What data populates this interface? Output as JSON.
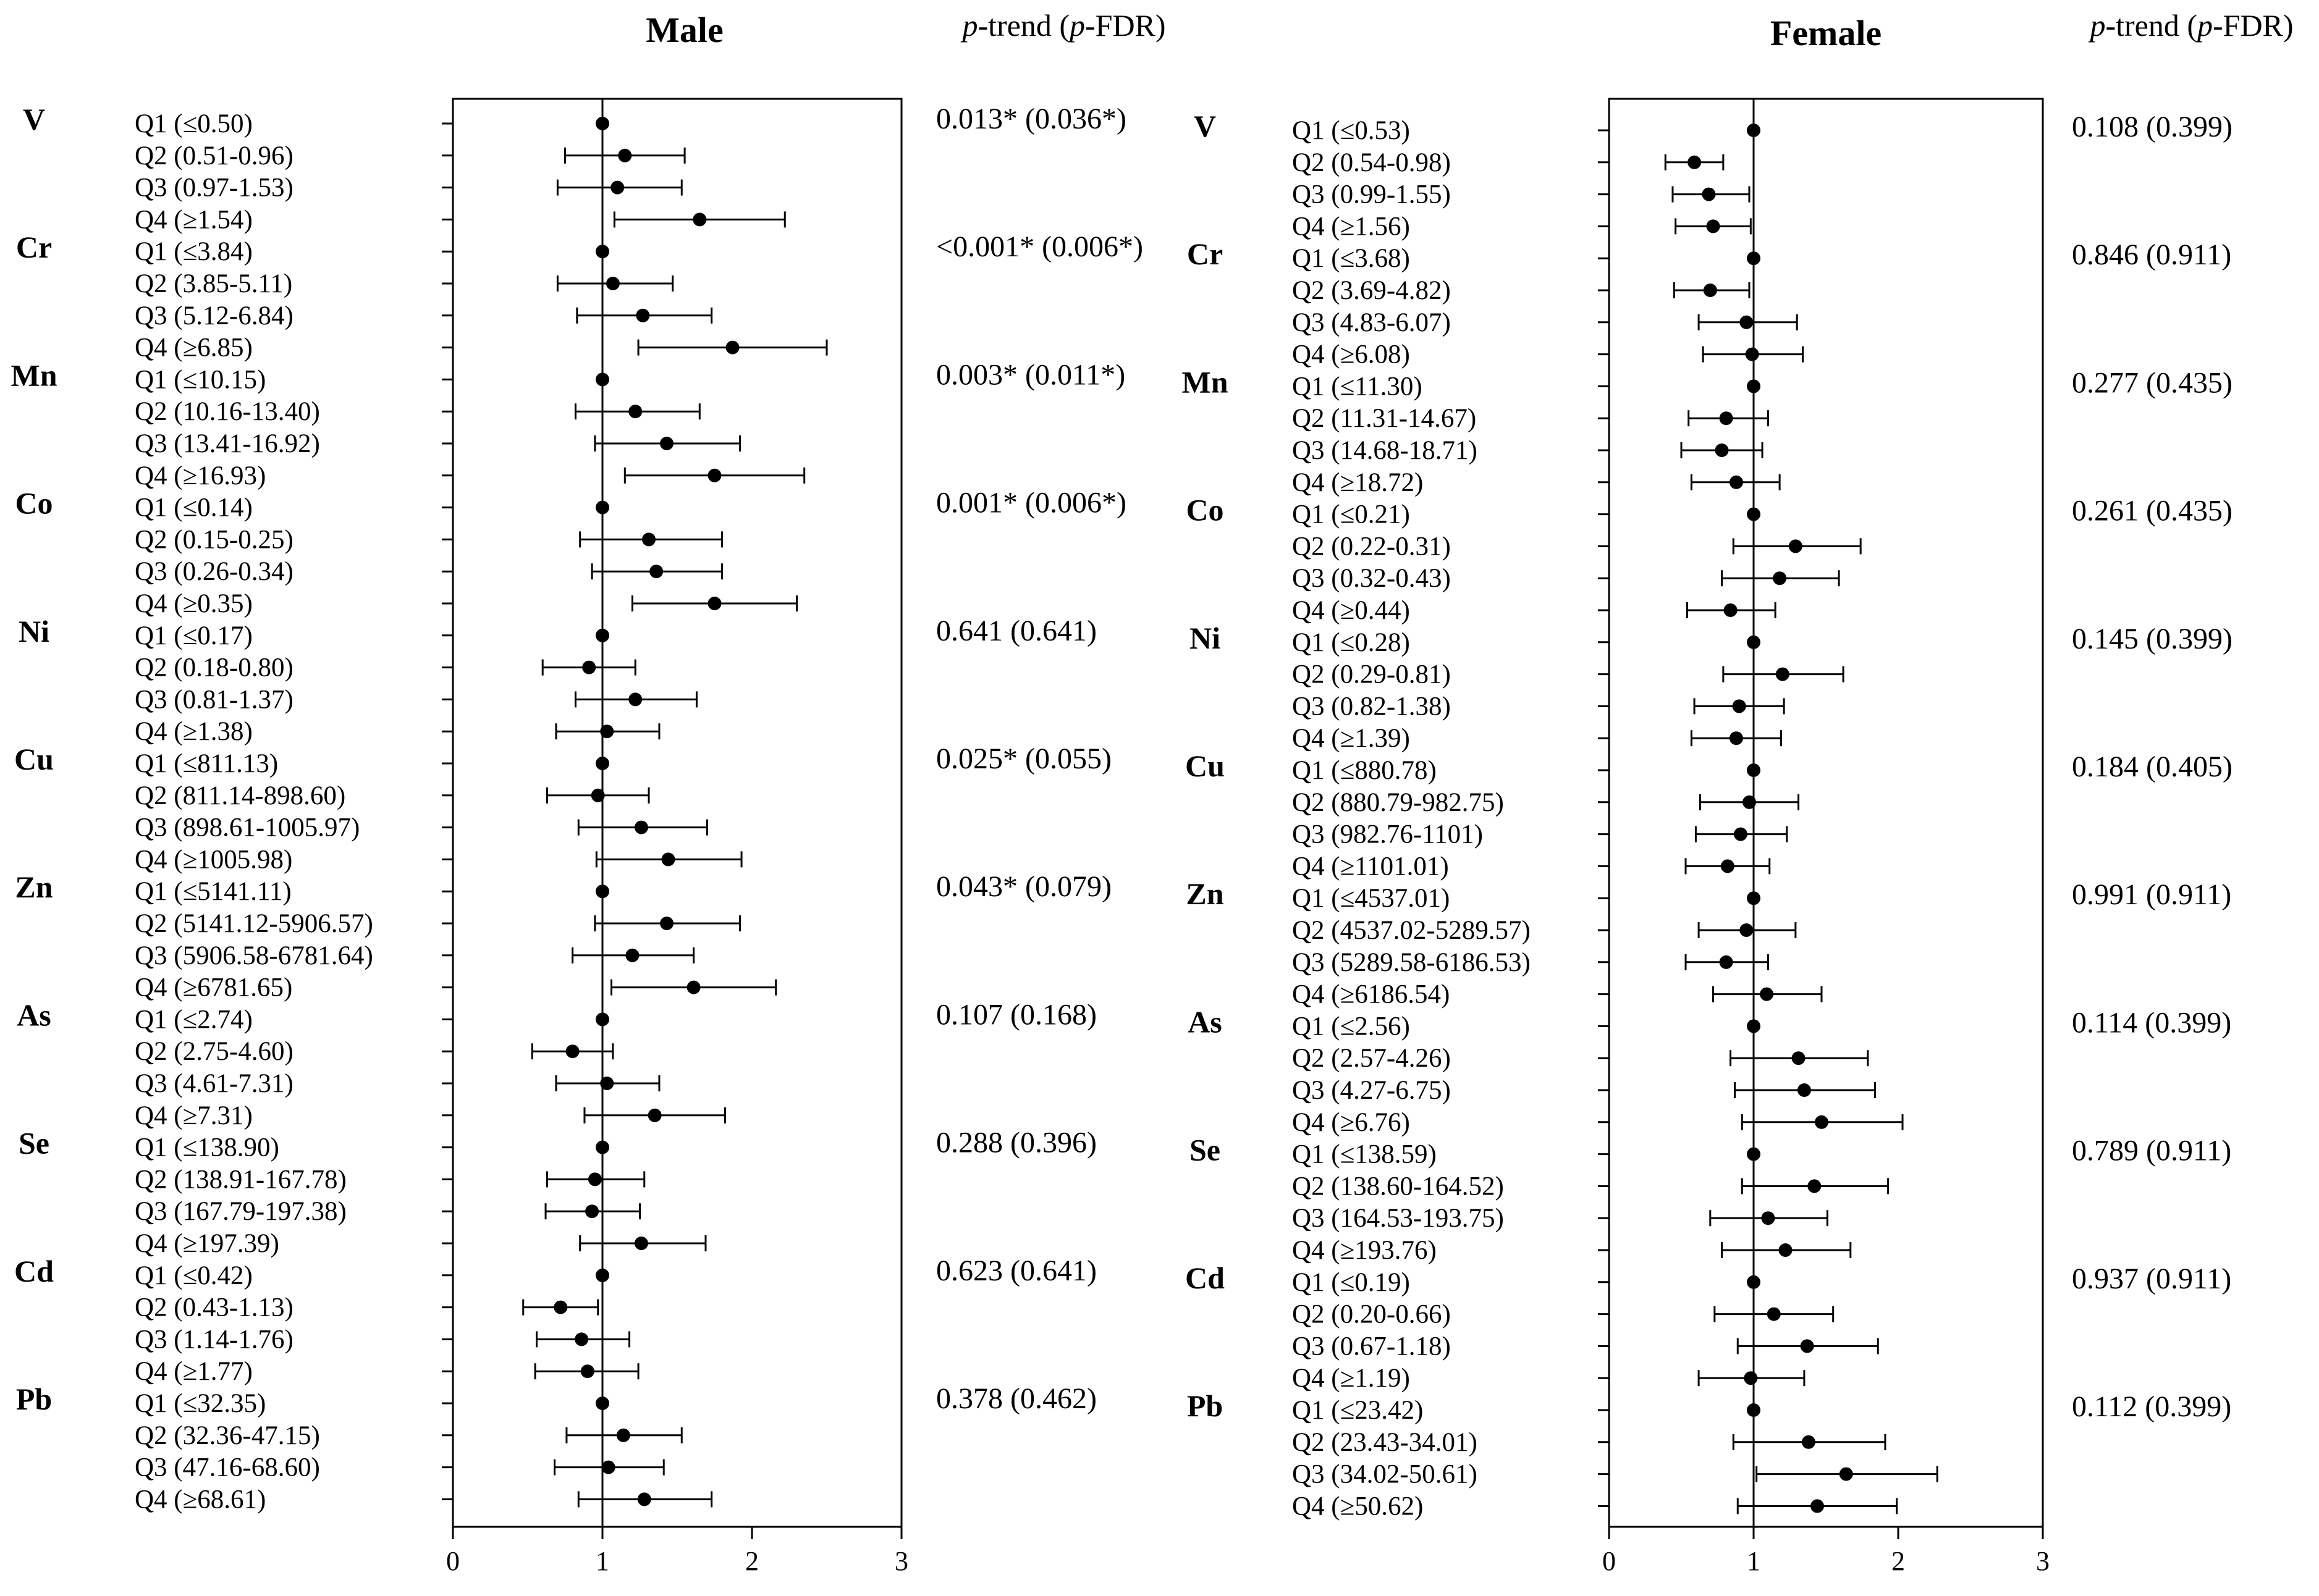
{
  "chart_data": [
    {
      "type": "forest",
      "title": "Male",
      "trend_header": {
        "p": "p",
        "mid": "-trend (",
        "p2": "p",
        "end": "-FDR)"
      },
      "xlim": [
        0,
        3
      ],
      "xticks": [
        "0",
        "1",
        "2",
        "3"
      ],
      "reference_line": 1,
      "groups": [
        {
          "metal": "V",
          "p_trend": "0.013* (0.036*)",
          "rows": [
            {
              "label": "Q1 (≤0.50)",
              "est": 1,
              "lo": 1,
              "hi": 1
            },
            {
              "label": "Q2 (0.51-0.96)",
              "est": 1.15,
              "lo": 0.75,
              "hi": 1.55
            },
            {
              "label": "Q3 (0.97-1.53)",
              "est": 1.1,
              "lo": 0.7,
              "hi": 1.53
            },
            {
              "label": "Q4 (≥1.54)",
              "est": 1.65,
              "lo": 1.08,
              "hi": 2.22
            }
          ]
        },
        {
          "metal": "Cr",
          "p_trend": "<0.001* (0.006*)",
          "rows": [
            {
              "label": "Q1 (≤3.84)",
              "est": 1,
              "lo": 1,
              "hi": 1
            },
            {
              "label": "Q2 (3.85-5.11)",
              "est": 1.07,
              "lo": 0.7,
              "hi": 1.47
            },
            {
              "label": "Q3 (5.12-6.84)",
              "est": 1.27,
              "lo": 0.83,
              "hi": 1.73
            },
            {
              "label": "Q4 (≥6.85)",
              "est": 1.87,
              "lo": 1.24,
              "hi": 2.5
            }
          ]
        },
        {
          "metal": "Mn",
          "p_trend": "0.003* (0.011*)",
          "rows": [
            {
              "label": "Q1 (≤10.15)",
              "est": 1,
              "lo": 1,
              "hi": 1
            },
            {
              "label": "Q2 (10.16-13.40)",
              "est": 1.22,
              "lo": 0.82,
              "hi": 1.65
            },
            {
              "label": "Q3 (13.41-16.92)",
              "est": 1.43,
              "lo": 0.95,
              "hi": 1.92
            },
            {
              "label": "Q4 (≥16.93)",
              "est": 1.75,
              "lo": 1.15,
              "hi": 2.35
            }
          ]
        },
        {
          "metal": "Co",
          "p_trend": "0.001* (0.006*)",
          "rows": [
            {
              "label": "Q1 (≤0.14)",
              "est": 1,
              "lo": 1,
              "hi": 1
            },
            {
              "label": "Q2 (0.15-0.25)",
              "est": 1.31,
              "lo": 0.85,
              "hi": 1.8
            },
            {
              "label": "Q3 (0.26-0.34)",
              "est": 1.36,
              "lo": 0.93,
              "hi": 1.8
            },
            {
              "label": "Q4 (≥0.35)",
              "est": 1.75,
              "lo": 1.2,
              "hi": 2.3
            }
          ]
        },
        {
          "metal": "Ni",
          "p_trend": "0.641 (0.641)",
          "rows": [
            {
              "label": "Q1 (≤0.17)",
              "est": 1,
              "lo": 1,
              "hi": 1
            },
            {
              "label": "Q2 (0.18-0.80)",
              "est": 0.91,
              "lo": 0.6,
              "hi": 1.22
            },
            {
              "label": "Q3 (0.81-1.37)",
              "est": 1.22,
              "lo": 0.82,
              "hi": 1.63
            },
            {
              "label": "Q4 (≥1.38)",
              "est": 1.03,
              "lo": 0.69,
              "hi": 1.38
            }
          ]
        },
        {
          "metal": "Cu",
          "p_trend": "0.025* (0.055)",
          "rows": [
            {
              "label": "Q1 (≤811.13)",
              "est": 1,
              "lo": 1,
              "hi": 1
            },
            {
              "label": "Q2 (811.14-898.60)",
              "est": 0.97,
              "lo": 0.63,
              "hi": 1.31
            },
            {
              "label": "Q3 (898.61-1005.97)",
              "est": 1.26,
              "lo": 0.84,
              "hi": 1.7
            },
            {
              "label": "Q4 (≥1005.98)",
              "est": 1.44,
              "lo": 0.96,
              "hi": 1.93
            }
          ]
        },
        {
          "metal": "Zn",
          "p_trend": "0.043* (0.079)",
          "rows": [
            {
              "label": "Q1 (≤5141.11)",
              "est": 1,
              "lo": 1,
              "hi": 1
            },
            {
              "label": "Q2 (5141.12-5906.57)",
              "est": 1.43,
              "lo": 0.95,
              "hi": 1.92
            },
            {
              "label": "Q3 (5906.58-6781.64)",
              "est": 1.2,
              "lo": 0.8,
              "hi": 1.61
            },
            {
              "label": "Q4 (≥6781.65)",
              "est": 1.61,
              "lo": 1.06,
              "hi": 2.16
            }
          ]
        },
        {
          "metal": "As",
          "p_trend": "0.107 (0.168)",
          "rows": [
            {
              "label": "Q1 (≤2.74)",
              "est": 1,
              "lo": 1,
              "hi": 1
            },
            {
              "label": "Q2 (2.75-4.60)",
              "est": 0.8,
              "lo": 0.53,
              "hi": 1.07
            },
            {
              "label": "Q3 (4.61-7.31)",
              "est": 1.03,
              "lo": 0.69,
              "hi": 1.38
            },
            {
              "label": "Q4 (≥7.31)",
              "est": 1.35,
              "lo": 0.88,
              "hi": 1.82
            }
          ]
        },
        {
          "metal": "Se",
          "p_trend": "0.288 (0.396)",
          "rows": [
            {
              "label": "Q1 (≤138.90)",
              "est": 1,
              "lo": 1,
              "hi": 1
            },
            {
              "label": "Q2 (138.91-167.78)",
              "est": 0.95,
              "lo": 0.63,
              "hi": 1.28
            },
            {
              "label": "Q3 (167.79-197.38)",
              "est": 0.93,
              "lo": 0.62,
              "hi": 1.25
            },
            {
              "label": "Q4 (≥197.39)",
              "est": 1.26,
              "lo": 0.85,
              "hi": 1.69
            }
          ]
        },
        {
          "metal": "Cd",
          "p_trend": "0.623 (0.641)",
          "rows": [
            {
              "label": "Q1 (≤0.42)",
              "est": 1,
              "lo": 1,
              "hi": 1
            },
            {
              "label": "Q2 (0.43-1.13)",
              "est": 0.72,
              "lo": 0.47,
              "hi": 0.97
            },
            {
              "label": "Q3 (1.14-1.76)",
              "est": 0.86,
              "lo": 0.56,
              "hi": 1.18
            },
            {
              "label": "Q4 (≥1.77)",
              "est": 0.9,
              "lo": 0.55,
              "hi": 1.24
            }
          ]
        },
        {
          "metal": "Pb",
          "p_trend": "0.378 (0.462)",
          "rows": [
            {
              "label": "Q1 (≤32.35)",
              "est": 1,
              "lo": 1,
              "hi": 1
            },
            {
              "label": "Q2 (32.36-47.15)",
              "est": 1.14,
              "lo": 0.76,
              "hi": 1.53
            },
            {
              "label": "Q3 (47.16-68.60)",
              "est": 1.04,
              "lo": 0.68,
              "hi": 1.41
            },
            {
              "label": "Q4 (≥68.61)",
              "est": 1.28,
              "lo": 0.84,
              "hi": 1.73
            }
          ]
        }
      ]
    },
    {
      "type": "forest",
      "title": "Female",
      "trend_header": {
        "p": "p",
        "mid": "-trend (",
        "p2": "p",
        "end": "-FDR)"
      },
      "xlim": [
        0,
        3
      ],
      "xticks": [
        "0",
        "1",
        "2",
        "3"
      ],
      "reference_line": 1,
      "groups": [
        {
          "metal": "V",
          "p_trend": "0.108 (0.399)",
          "rows": [
            {
              "label": "Q1 (≤0.53)",
              "est": 1,
              "lo": 1,
              "hi": 1
            },
            {
              "label": "Q2 (0.54-0.98)",
              "est": 0.59,
              "lo": 0.39,
              "hi": 0.79
            },
            {
              "label": "Q3 (0.99-1.55)",
              "est": 0.69,
              "lo": 0.44,
              "hi": 0.97
            },
            {
              "label": "Q4 (≥1.56)",
              "est": 0.72,
              "lo": 0.46,
              "hi": 0.98
            }
          ]
        },
        {
          "metal": "Cr",
          "p_trend": "0.846 (0.911)",
          "rows": [
            {
              "label": "Q1 (≤3.68)",
              "est": 1,
              "lo": 1,
              "hi": 1
            },
            {
              "label": "Q2 (3.69-4.82)",
              "est": 0.7,
              "lo": 0.45,
              "hi": 0.97
            },
            {
              "label": "Q3 (4.83-6.07)",
              "est": 0.95,
              "lo": 0.62,
              "hi": 1.3
            },
            {
              "label": "Q4 (≥6.08)",
              "est": 0.99,
              "lo": 0.65,
              "hi": 1.34
            }
          ]
        },
        {
          "metal": "Mn",
          "p_trend": "0.277 (0.435)",
          "rows": [
            {
              "label": "Q1 (≤11.30)",
              "est": 1,
              "lo": 1,
              "hi": 1
            },
            {
              "label": "Q2 (11.31-14.67)",
              "est": 0.81,
              "lo": 0.55,
              "hi": 1.1
            },
            {
              "label": "Q3 (14.68-18.71)",
              "est": 0.78,
              "lo": 0.5,
              "hi": 1.06
            },
            {
              "label": "Q4 (≥18.72)",
              "est": 0.88,
              "lo": 0.57,
              "hi": 1.18
            }
          ]
        },
        {
          "metal": "Co",
          "p_trend": "0.261 (0.435)",
          "rows": [
            {
              "label": "Q1 (≤0.21)",
              "est": 1,
              "lo": 1,
              "hi": 1
            },
            {
              "label": "Q2 (0.22-0.31)",
              "est": 1.29,
              "lo": 0.86,
              "hi": 1.74
            },
            {
              "label": "Q3 (0.32-0.43)",
              "est": 1.18,
              "lo": 0.78,
              "hi": 1.59
            },
            {
              "label": "Q4 (≥0.44)",
              "est": 0.84,
              "lo": 0.54,
              "hi": 1.15
            }
          ]
        },
        {
          "metal": "Ni",
          "p_trend": "0.145 (0.399)",
          "rows": [
            {
              "label": "Q1 (≤0.28)",
              "est": 1,
              "lo": 1,
              "hi": 1
            },
            {
              "label": "Q2 (0.29-0.81)",
              "est": 1.2,
              "lo": 0.79,
              "hi": 1.62
            },
            {
              "label": "Q3 (0.82-1.38)",
              "est": 0.9,
              "lo": 0.59,
              "hi": 1.21
            },
            {
              "label": "Q4 (≥1.39)",
              "est": 0.88,
              "lo": 0.57,
              "hi": 1.19
            }
          ]
        },
        {
          "metal": "Cu",
          "p_trend": "0.184 (0.405)",
          "rows": [
            {
              "label": "Q1 (≤880.78)",
              "est": 1,
              "lo": 1,
              "hi": 1
            },
            {
              "label": "Q2 (880.79-982.75)",
              "est": 0.97,
              "lo": 0.63,
              "hi": 1.31
            },
            {
              "label": "Q3 (982.76-1101)",
              "est": 0.91,
              "lo": 0.6,
              "hi": 1.23
            },
            {
              "label": "Q4 (≥1101.01)",
              "est": 0.82,
              "lo": 0.53,
              "hi": 1.11
            }
          ]
        },
        {
          "metal": "Zn",
          "p_trend": "0.991 (0.911)",
          "rows": [
            {
              "label": "Q1 (≤4537.01)",
              "est": 1,
              "lo": 1,
              "hi": 1
            },
            {
              "label": "Q2 (4537.02-5289.57)",
              "est": 0.95,
              "lo": 0.62,
              "hi": 1.29
            },
            {
              "label": "Q3 (5289.58-6186.53)",
              "est": 0.81,
              "lo": 0.53,
              "hi": 1.1
            },
            {
              "label": "Q4 (≥6186.54)",
              "est": 1.09,
              "lo": 0.72,
              "hi": 1.47
            }
          ]
        },
        {
          "metal": "As",
          "p_trend": "0.114 (0.399)",
          "rows": [
            {
              "label": "Q1 (≤2.56)",
              "est": 1,
              "lo": 1,
              "hi": 1
            },
            {
              "label": "Q2 (2.57-4.26)",
              "est": 1.31,
              "lo": 0.84,
              "hi": 1.79
            },
            {
              "label": "Q3 (4.27-6.75)",
              "est": 1.35,
              "lo": 0.87,
              "hi": 1.84
            },
            {
              "label": "Q4 (≥6.76)",
              "est": 1.47,
              "lo": 0.92,
              "hi": 2.03
            }
          ]
        },
        {
          "metal": "Se",
          "p_trend": "0.789 (0.911)",
          "rows": [
            {
              "label": "Q1 (≤138.59)",
              "est": 1,
              "lo": 1,
              "hi": 1
            },
            {
              "label": "Q2 (138.60-164.52)",
              "est": 1.42,
              "lo": 0.92,
              "hi": 1.93
            },
            {
              "label": "Q3 (164.53-193.75)",
              "est": 1.1,
              "lo": 0.7,
              "hi": 1.51
            },
            {
              "label": "Q4 (≥193.76)",
              "est": 1.22,
              "lo": 0.78,
              "hi": 1.67
            }
          ]
        },
        {
          "metal": "Cd",
          "p_trend": "0.937 (0.911)",
          "rows": [
            {
              "label": "Q1 (≤0.19)",
              "est": 1,
              "lo": 1,
              "hi": 1
            },
            {
              "label": "Q2 (0.20-0.66)",
              "est": 1.14,
              "lo": 0.73,
              "hi": 1.55
            },
            {
              "label": "Q3 (0.67-1.18)",
              "est": 1.37,
              "lo": 0.89,
              "hi": 1.86
            },
            {
              "label": "Q4 (≥1.19)",
              "est": 0.98,
              "lo": 0.62,
              "hi": 1.35
            }
          ]
        },
        {
          "metal": "Pb",
          "p_trend": "0.112 (0.399)",
          "rows": [
            {
              "label": "Q1 (≤23.42)",
              "est": 1,
              "lo": 1,
              "hi": 1
            },
            {
              "label": "Q2 (23.43-34.01)",
              "est": 1.38,
              "lo": 0.86,
              "hi": 1.91
            },
            {
              "label": "Q3 (34.02-50.61)",
              "est": 1.64,
              "lo": 1.02,
              "hi": 2.27
            },
            {
              "label": "Q4 (≥50.62)",
              "est": 1.44,
              "lo": 0.89,
              "hi": 1.99
            }
          ]
        }
      ]
    }
  ]
}
